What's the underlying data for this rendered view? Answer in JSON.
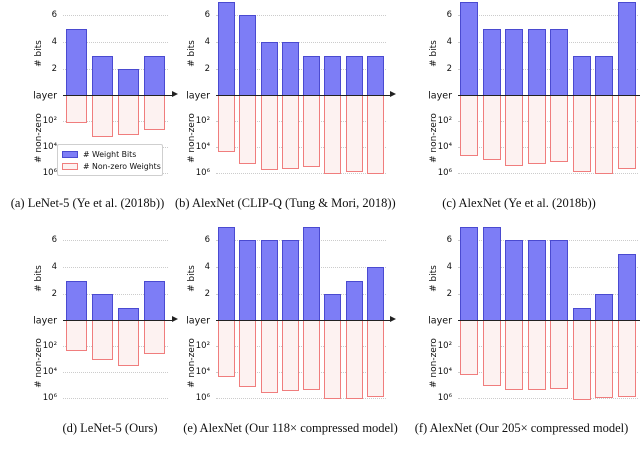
{
  "figure": {
    "legend": {
      "items": [
        {
          "label": "# Weight Bits",
          "swatch": "blue-filled-bar"
        },
        {
          "label": "# Non-zero Weights",
          "swatch": "red-outlined-bar"
        }
      ]
    },
    "axes": {
      "bits_label": "# bits",
      "nonzero_label": "# non-zero",
      "x_label": "layer",
      "bits_ticks": [
        "6",
        "4",
        "2"
      ],
      "nonzero_ticks": [
        "10²",
        "10⁴",
        "10⁶"
      ]
    },
    "colors": {
      "weight_bits_fill": "#7d7df6",
      "weight_bits_edge": "#4a4ad0",
      "nonzero_edge": "#f07d7d",
      "nonzero_fill": "#fdf2f1",
      "grid": "#cccccc",
      "axis": "#222222"
    }
  },
  "chart_data": [
    {
      "id": "a",
      "type": "bar",
      "caption": "(a) LeNet-5 (Ye et al. (2018b))",
      "xlabel": "layer",
      "y_top": {
        "label": "# bits",
        "ticks": [
          2,
          4,
          6
        ],
        "range": [
          0,
          7.2
        ]
      },
      "y_bottom": {
        "label": "# non-zero",
        "ticks": [
          100,
          10000,
          1000000
        ],
        "scale": "log",
        "direction": "down"
      },
      "series": [
        {
          "name": "# Weight Bits",
          "values": [
            5,
            3,
            2,
            3
          ]
        },
        {
          "name": "# Non-zero Weights",
          "values": [
            130,
            1600,
            1100,
            450
          ]
        }
      ]
    },
    {
      "id": "b",
      "type": "bar",
      "caption": "(b) AlexNet (CLIP-Q (Tung & Mori, 2018))",
      "xlabel": "layer",
      "y_top": {
        "label": "# bits",
        "ticks": [
          2,
          4,
          6
        ],
        "range": [
          0,
          7.2
        ]
      },
      "y_bottom": {
        "label": "# non-zero",
        "ticks": [
          100,
          10000,
          1000000
        ],
        "scale": "log",
        "direction": "down"
      },
      "series": [
        {
          "name": "# Weight Bits",
          "values": [
            7,
            6,
            4,
            4,
            3,
            3,
            3,
            3
          ]
        },
        {
          "name": "# Non-zero Weights",
          "values": [
            20000,
            160000,
            450000,
            400000,
            280000,
            1000000,
            630000,
            890000
          ]
        }
      ]
    },
    {
      "id": "c",
      "type": "bar",
      "caption": "(c) AlexNet (Ye et al. (2018b))",
      "xlabel": "layer",
      "y_top": {
        "label": "# bits",
        "ticks": [
          2,
          4,
          6
        ],
        "range": [
          0,
          7.2
        ]
      },
      "y_bottom": {
        "label": "# non-zero",
        "ticks": [
          100,
          10000,
          1000000
        ],
        "scale": "log",
        "direction": "down"
      },
      "series": [
        {
          "name": "# Weight Bits",
          "values": [
            7,
            5,
            5,
            5,
            5,
            3,
            3,
            7
          ]
        },
        {
          "name": "# Non-zero Weights",
          "values": [
            40000,
            79000,
            250000,
            180000,
            110000,
            710000,
            1000000,
            400000
          ]
        }
      ]
    },
    {
      "id": "d",
      "type": "bar",
      "caption": "(d) LeNet-5 (Ours)",
      "xlabel": "layer",
      "y_top": {
        "label": "# bits",
        "ticks": [
          2,
          4,
          6
        ],
        "range": [
          0,
          7.2
        ]
      },
      "y_bottom": {
        "label": "# non-zero",
        "ticks": [
          100,
          10000,
          1000000
        ],
        "scale": "log",
        "direction": "down"
      },
      "series": [
        {
          "name": "# Weight Bits",
          "values": [
            3,
            2,
            1,
            3
          ]
        },
        {
          "name": "# Non-zero Weights",
          "values": [
            220,
            1000,
            3200,
            400
          ]
        }
      ]
    },
    {
      "id": "e",
      "type": "bar",
      "caption": "(e) AlexNet (Our 118× compressed model)",
      "xlabel": "layer",
      "y_top": {
        "label": "# bits",
        "ticks": [
          2,
          4,
          6
        ],
        "range": [
          0,
          7.2
        ]
      },
      "y_bottom": {
        "label": "# non-zero",
        "ticks": [
          100,
          10000,
          1000000
        ],
        "scale": "log",
        "direction": "down"
      },
      "series": [
        {
          "name": "# Weight Bits",
          "values": [
            7,
            6,
            6,
            6,
            7,
            2,
            3,
            4
          ]
        },
        {
          "name": "# Non-zero Weights",
          "values": [
            20000,
            126000,
            320000,
            250000,
            200000,
            1000000,
            1000000,
            630000
          ]
        }
      ]
    },
    {
      "id": "f",
      "type": "bar",
      "caption": "(f) AlexNet (Our 205× compressed model)",
      "xlabel": "layer",
      "y_top": {
        "label": "# bits",
        "ticks": [
          2,
          4,
          6
        ],
        "range": [
          0,
          7.2
        ]
      },
      "y_bottom": {
        "label": "# non-zero",
        "ticks": [
          100,
          10000,
          1000000
        ],
        "scale": "log",
        "direction": "down"
      },
      "series": [
        {
          "name": "# Weight Bits",
          "values": [
            7,
            7,
            6,
            6,
            6,
            1,
            2,
            5
          ]
        },
        {
          "name": "# Non-zero Weights",
          "values": [
            16000,
            100000,
            200000,
            200000,
            160000,
            1100000,
            790000,
            710000
          ]
        }
      ]
    }
  ]
}
